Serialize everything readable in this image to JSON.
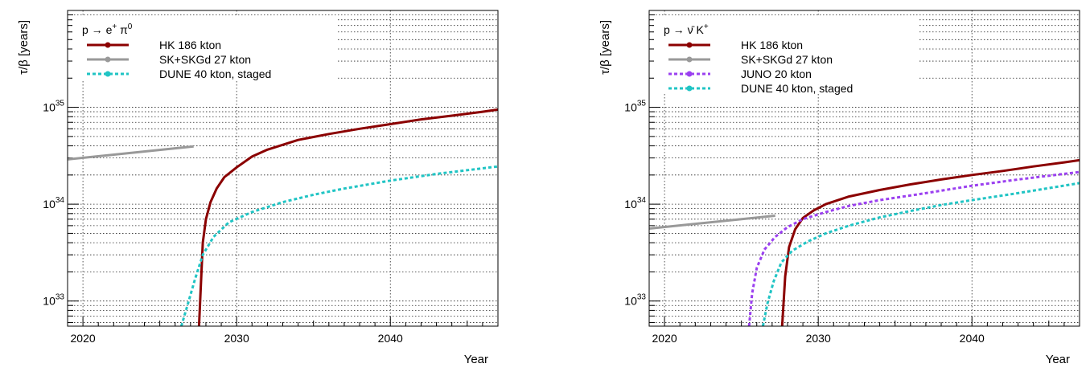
{
  "chart_data": [
    {
      "type": "line",
      "process": "p → e⁺ π⁰",
      "xlabel": "Year",
      "ylabel": "τ/β [years]",
      "xlim": [
        2019,
        2047
      ],
      "ylim": [
        5.5e+32,
        1e+36
      ],
      "yscale": "log",
      "x_ticks": [
        2020,
        2030,
        2040
      ],
      "y_ticks": [
        "10^33",
        "10^34",
        "10^35"
      ],
      "grid": true,
      "legend_position": "top-left",
      "series": [
        {
          "name": "HK 186 kton",
          "color": "#8b0000",
          "style": "solid",
          "x": [
            2027.55,
            2027.8,
            2028.0,
            2028.3,
            2028.7,
            2029.2,
            2030,
            2031,
            2032,
            2034,
            2036,
            2038,
            2040,
            2042,
            2044,
            2046,
            2047
          ],
          "y": [
            5.5e+32,
            4e+33,
            7e+33,
            1.05e+34,
            1.45e+34,
            1.9e+34,
            2.4e+34,
            3.1e+34,
            3.65e+34,
            4.6e+34,
            5.3e+34,
            6e+34,
            6.7e+34,
            7.5e+34,
            8.2e+34,
            9e+34,
            9.5e+34
          ]
        },
        {
          "name": "SK+SKGd 27 kton",
          "color": "#999999",
          "style": "solid",
          "x": [
            2019,
            2027.2
          ],
          "y": [
            2.9e+34,
            3.95e+34
          ]
        },
        {
          "name": "DUNE 40 kton, staged",
          "color": "#20c4c4",
          "style": "dashed",
          "x": [
            2026.4,
            2026.8,
            2027.3,
            2027.8,
            2028.5,
            2029.5,
            2031,
            2033,
            2035,
            2037,
            2040,
            2043,
            2047
          ],
          "y": [
            5.5e+32,
            9e+32,
            1.7e+33,
            3e+33,
            4.6e+33,
            6.5e+33,
            8.3e+33,
            1.05e+34,
            1.25e+34,
            1.45e+34,
            1.75e+34,
            2.05e+34,
            2.45e+34
          ]
        }
      ]
    },
    {
      "type": "line",
      "process": "p → ν̄ K⁺",
      "xlabel": "Year",
      "ylabel": "τ/β [years]",
      "xlim": [
        2019,
        2047
      ],
      "ylim": [
        5.5e+32,
        1e+36
      ],
      "yscale": "log",
      "x_ticks": [
        2020,
        2030,
        2040
      ],
      "y_ticks": [
        "10^33",
        "10^34",
        "10^35"
      ],
      "grid": true,
      "legend_position": "top-left",
      "series": [
        {
          "name": "HK 186 kton",
          "color": "#8b0000",
          "style": "solid",
          "x": [
            2027.65,
            2027.85,
            2028.1,
            2028.5,
            2029.0,
            2029.7,
            2030.5,
            2032,
            2034,
            2036,
            2038,
            2040,
            2042,
            2044,
            2046,
            2047
          ],
          "y": [
            5.5e+32,
            1.8e+33,
            3.6e+33,
            5.5e+33,
            7.2e+33,
            8.6e+33,
            1e+34,
            1.2e+34,
            1.4e+34,
            1.6e+34,
            1.8e+34,
            2e+34,
            2.2e+34,
            2.45e+34,
            2.7e+34,
            2.85e+34
          ]
        },
        {
          "name": "SK+SKGd 27 kton",
          "color": "#999999",
          "style": "solid",
          "x": [
            2019,
            2027.2
          ],
          "y": [
            5.6e+33,
            7.6e+33
          ]
        },
        {
          "name": "JUNO 20 kton",
          "color": "#9b40f0",
          "style": "dashed",
          "x": [
            2025.5,
            2025.7,
            2026.0,
            2026.5,
            2027.2,
            2028.0,
            2029.0,
            2030.5,
            2032,
            2034,
            2037,
            2040,
            2043,
            2047
          ],
          "y": [
            5.5e+32,
            1.2e+33,
            2.2e+33,
            3.4e+33,
            4.6e+33,
            5.8e+33,
            7e+33,
            8.3e+33,
            9.6e+33,
            1.1e+34,
            1.3e+34,
            1.55e+34,
            1.8e+34,
            2.15e+34
          ]
        },
        {
          "name": "DUNE 40 kton, staged",
          "color": "#20c4c4",
          "style": "dashed",
          "x": [
            2026.4,
            2026.7,
            2027.1,
            2027.6,
            2028.3,
            2029.3,
            2030.5,
            2032,
            2034,
            2036,
            2038,
            2040,
            2043,
            2047
          ],
          "y": [
            5.5e+32,
            9.5e+32,
            1.6e+33,
            2.5e+33,
            3.3e+33,
            4.1e+33,
            5e+33,
            6e+33,
            7.3e+33,
            8.5e+33,
            9.8e+33,
            1.1e+34,
            1.3e+34,
            1.65e+34
          ]
        }
      ]
    }
  ]
}
